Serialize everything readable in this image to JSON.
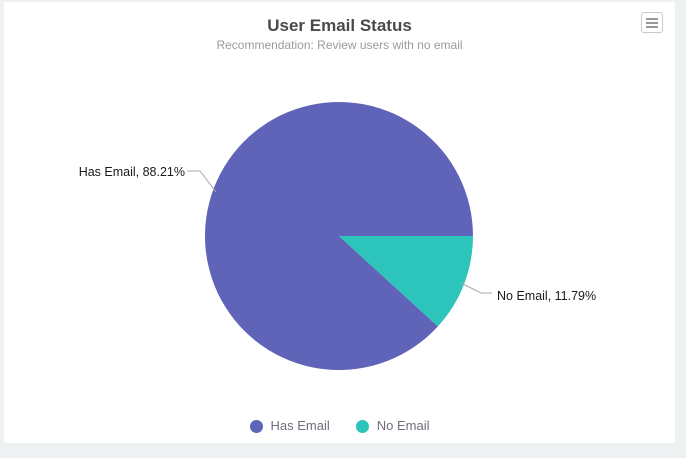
{
  "page": {
    "background_color": "#edf1f2",
    "card_background_color": "#ffffff"
  },
  "toolbar": {
    "menu_icon": "hamburger-menu-icon"
  },
  "chart_data": {
    "type": "pie",
    "title": "User Email Status",
    "subtitle": "Recommendation: Review users with no email",
    "categories": [
      "Has Email",
      "No Email"
    ],
    "values": [
      88.21,
      11.79
    ],
    "unit": "%",
    "series": [
      {
        "name": "Has Email",
        "percent": 88.21,
        "color": "#5f64b8",
        "label": "Has Email, 88.21%"
      },
      {
        "name": "No Email",
        "percent": 11.79,
        "color": "#2cc4bb",
        "label": "No Email, 11.79%"
      }
    ],
    "legend": {
      "position": "bottom",
      "entries": [
        "Has Email",
        "No Email"
      ]
    },
    "start_angle_deg": 42.44,
    "label_text_color": "#1a1a1a",
    "leader_line_color": "#a8a8a8"
  }
}
